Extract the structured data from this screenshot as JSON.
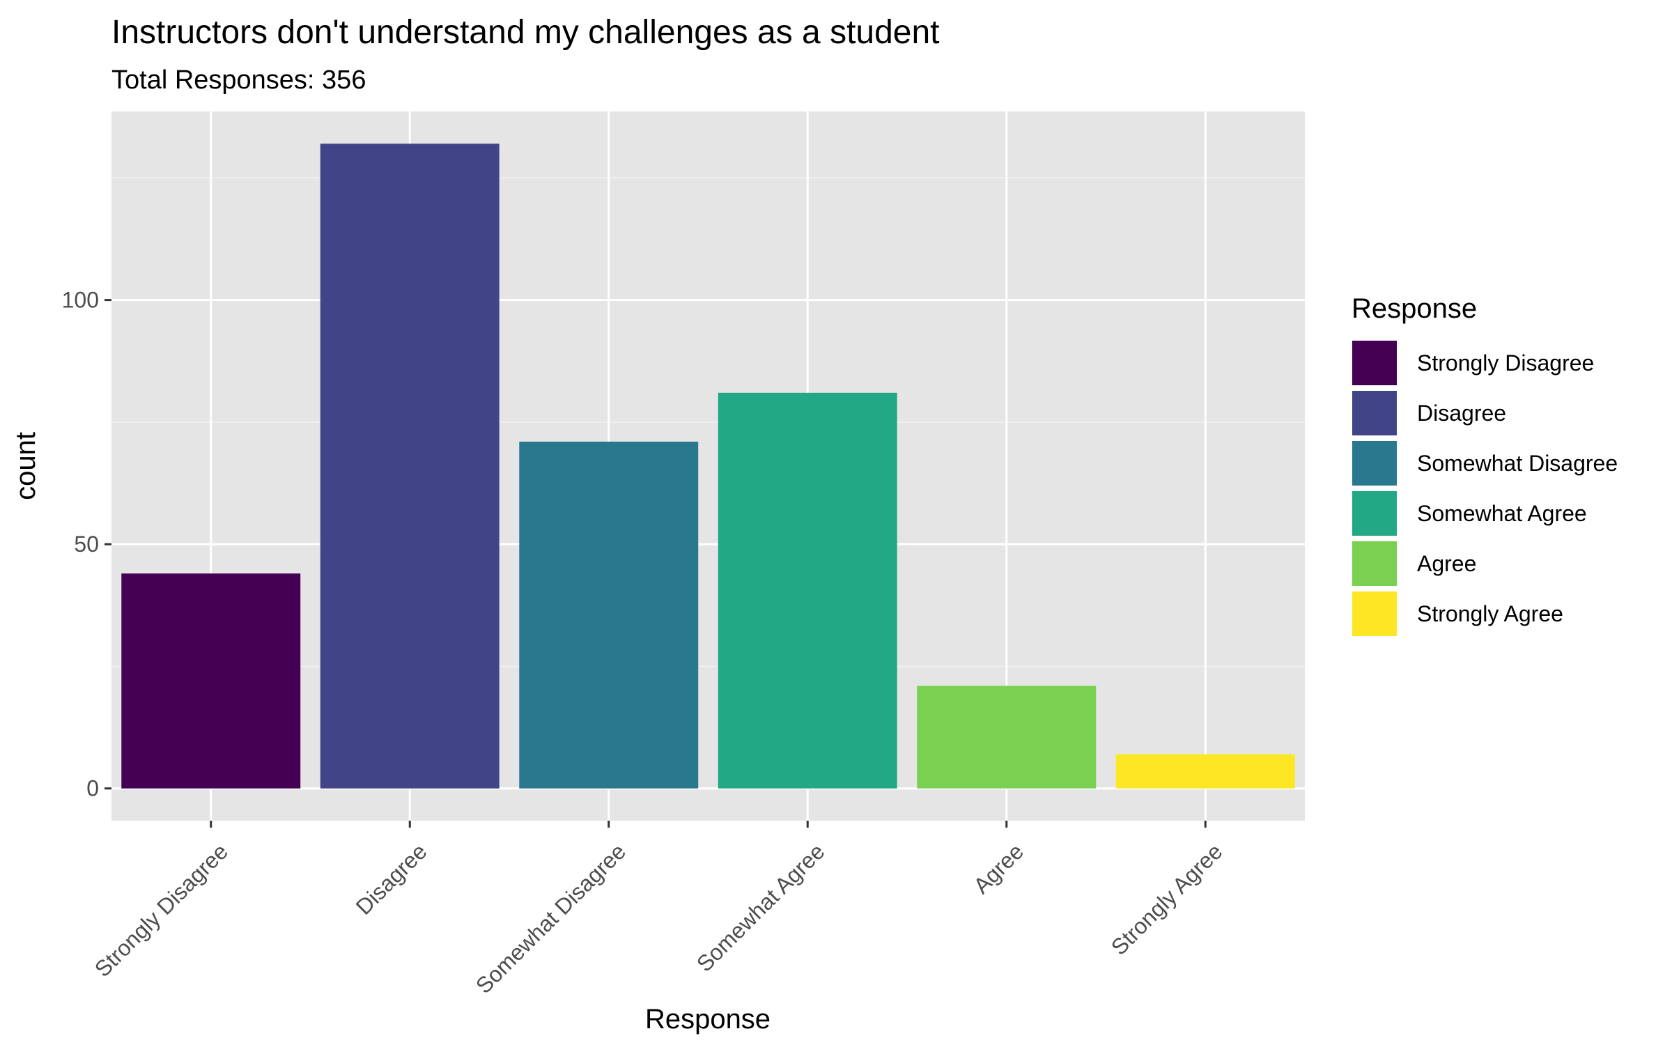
{
  "chart_data": {
    "type": "bar",
    "title": "Instructors don't understand my challenges as a student",
    "subtitle": "Total Responses: 356",
    "xlabel": "Response",
    "ylabel": "count",
    "categories": [
      "Strongly Disagree",
      "Disagree",
      "Somewhat Disagree",
      "Somewhat Agree",
      "Agree",
      "Strongly Agree"
    ],
    "values": [
      44,
      132,
      71,
      81,
      21,
      7
    ],
    "colors": [
      "#440154",
      "#414487",
      "#2A788E",
      "#22A884",
      "#7AD151",
      "#FDE725"
    ],
    "ylim": [
      -6.6,
      138.6
    ],
    "y_ticks": [
      0,
      50,
      100
    ],
    "grid": true,
    "legend": {
      "title": "Response",
      "placement": "right",
      "entries": [
        "Strongly Disagree",
        "Disagree",
        "Somewhat Disagree",
        "Somewhat Agree",
        "Agree",
        "Strongly Agree"
      ]
    }
  }
}
